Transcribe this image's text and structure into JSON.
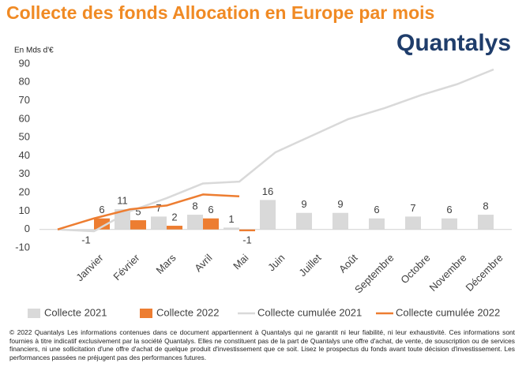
{
  "chart_data": {
    "type": "combo",
    "title": "Collecte des fonds Allocation en Europe par mois",
    "logo": "Quantalys",
    "y_label": "En Mds d'€",
    "categories": [
      null,
      "Janvier",
      "Février",
      "Mars",
      "Avril",
      "Mai",
      "Juin",
      "Juillet",
      "Août",
      "Septembre",
      "Octobre",
      "Novembre",
      "Décembre"
    ],
    "series": [
      {
        "name": "Collecte 2021",
        "type": "bar",
        "color": "#d9d9d9",
        "values": [
          null,
          -1,
          11,
          7,
          8,
          1,
          16,
          9,
          9,
          6,
          7,
          6,
          8
        ]
      },
      {
        "name": "Collecte 2022",
        "type": "bar",
        "color": "#ed7d31",
        "values": [
          null,
          6,
          5,
          2,
          6,
          -1,
          null,
          null,
          null,
          null,
          null,
          null,
          null
        ]
      },
      {
        "name": "Collecte cumulée 2021",
        "type": "line",
        "color": "#d9d9d9",
        "values": [
          0,
          -1,
          10,
          17,
          25,
          26,
          42,
          51,
          60,
          66,
          73,
          79,
          87
        ]
      },
      {
        "name": "Collecte cumulée 2022",
        "type": "line",
        "color": "#ed7d31",
        "values": [
          0,
          6,
          11,
          13,
          19,
          18,
          null,
          null,
          null,
          null,
          null,
          null,
          null
        ]
      }
    ],
    "ylim": [
      -10,
      90
    ],
    "yticks": [
      -10,
      0,
      10,
      20,
      30,
      40,
      50,
      60,
      70,
      80,
      90
    ],
    "grid": false,
    "legend": "bottom",
    "footnote": "© 2022 Quantalys Les informations contenues dans ce document appartiennent à Quantalys qui ne garantit ni leur fiabilité, ni leur exhaustivité. Ces informations sont fournies à titre indicatif exclusivement par la société Quantalys. Elles ne constituent pas de la part de Quantalys une offre d'achat, de vente, de souscription ou de services financiers, ni une sollicitation d'une offre d'achat de quelque produit d'investissement que ce soit. Lisez le prospectus du fonds avant toute décision d'investissement. Les performances passées ne préjugent pas des performances futures."
  }
}
